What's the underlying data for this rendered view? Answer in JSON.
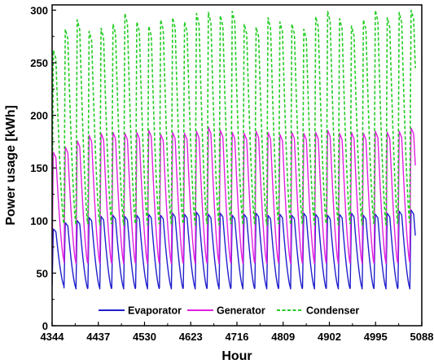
{
  "chart_data": {
    "type": "line",
    "xlabel": "Hour",
    "ylabel": "Power usage [kWh]",
    "xlim": [
      4344,
      5088
    ],
    "ylim": [
      0,
      305
    ],
    "xticks": [
      4344,
      4437,
      4530,
      4623,
      4716,
      4809,
      4902,
      4995,
      5088
    ],
    "yticks": [
      0,
      50,
      100,
      150,
      200,
      250,
      300
    ],
    "x_start": 4344,
    "x_end": 5075,
    "cycle_hours": 24,
    "legend_position": "bottom",
    "series": [
      {
        "name": "Evaporator",
        "color": "#1f1fcc",
        "line_style": "solid",
        "daily_min": [
          38,
          36,
          35,
          36,
          35,
          36,
          35,
          36,
          35,
          36,
          35,
          36,
          35,
          36,
          35,
          36,
          35,
          36,
          35,
          36,
          35,
          36,
          35,
          36,
          35,
          36,
          35,
          36,
          35,
          36,
          35
        ],
        "daily_max": [
          92,
          98,
          100,
          103,
          104,
          105,
          104,
          105,
          106,
          105,
          107,
          106,
          108,
          106,
          107,
          105,
          106,
          107,
          105,
          106,
          105,
          107,
          106,
          105,
          106,
          107,
          105,
          106,
          107,
          109,
          110
        ]
      },
      {
        "name": "Generator",
        "color": "#e020e0",
        "line_style": "solid",
        "daily_min": [
          62,
          60,
          59,
          60,
          59,
          60,
          59,
          60,
          59,
          60,
          59,
          60,
          59,
          60,
          59,
          60,
          59,
          60,
          59,
          60,
          59,
          60,
          59,
          60,
          59,
          60,
          59,
          60,
          59,
          60,
          78
        ],
        "daily_max": [
          165,
          170,
          176,
          181,
          183,
          184,
          183,
          184,
          186,
          182,
          184,
          183,
          185,
          189,
          186,
          184,
          183,
          185,
          184,
          182,
          184,
          183,
          184,
          186,
          183,
          184,
          183,
          185,
          184,
          185,
          188
        ]
      },
      {
        "name": "Condenser",
        "color": "#22cc22",
        "line_style": "dashed",
        "daily_min": [
          96,
          97,
          96,
          97,
          96,
          97,
          96,
          97,
          96,
          97,
          96,
          97,
          96,
          97,
          96,
          97,
          96,
          97,
          96,
          97,
          96,
          97,
          96,
          97,
          96,
          97,
          96,
          97,
          96,
          97,
          130
        ],
        "daily_max": [
          262,
          282,
          291,
          280,
          283,
          287,
          297,
          289,
          285,
          291,
          293,
          289,
          297,
          298,
          295,
          299,
          287,
          284,
          293,
          289,
          287,
          282,
          294,
          299,
          292,
          285,
          291,
          300,
          293,
          298,
          300
        ]
      }
    ]
  }
}
